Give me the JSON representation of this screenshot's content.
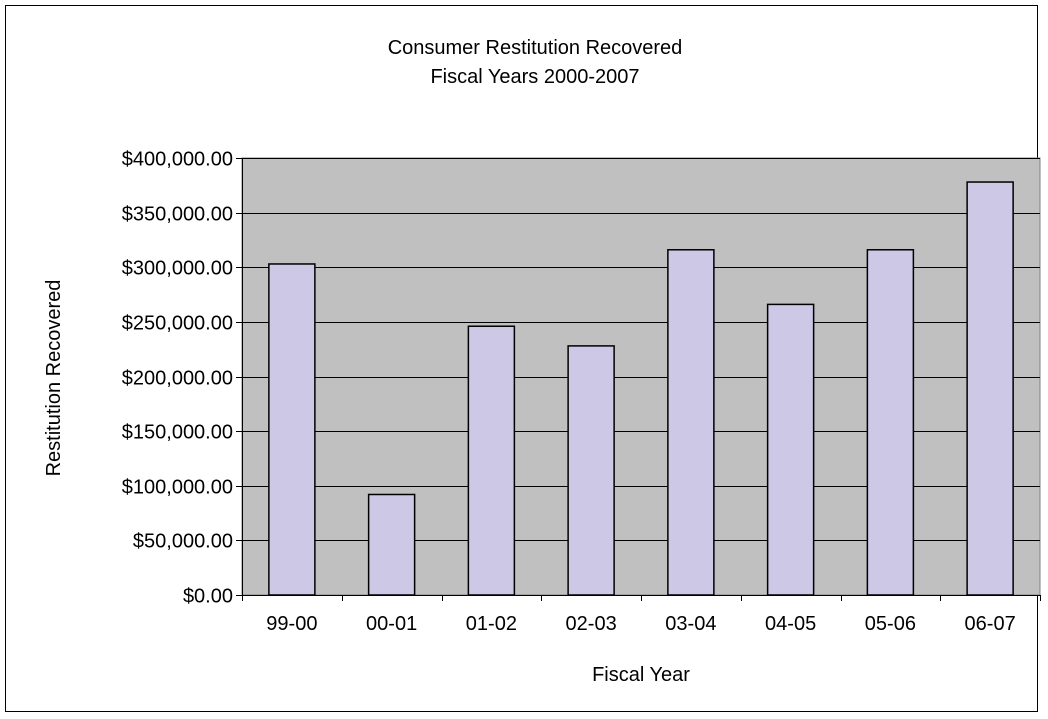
{
  "chart_data": {
    "type": "bar",
    "title": "Consumer Restitution Recovered",
    "subtitle": "Fiscal Years 2000-2007",
    "xlabel": "Fiscal Year",
    "ylabel": "Restitution Recovered",
    "categories": [
      "99-00",
      "00-01",
      "01-02",
      "02-03",
      "03-04",
      "04-05",
      "05-06",
      "06-07"
    ],
    "values": [
      303000,
      92000,
      246000,
      228000,
      316000,
      266000,
      316000,
      378000
    ],
    "ylim": [
      0,
      400000
    ],
    "yticks": [
      0,
      50000,
      100000,
      150000,
      200000,
      250000,
      300000,
      350000,
      400000
    ],
    "ytick_labels": [
      "$0.00",
      "$50,000.00",
      "$100,000.00",
      "$150,000.00",
      "$200,000.00",
      "$250,000.00",
      "$300,000.00",
      "$350,000.00",
      "$400,000.00"
    ],
    "grid": true,
    "legend": "none",
    "colors": {
      "plot_background": "#c0c0c0",
      "bar_fill": "#ccc8e6",
      "bar_stroke": "#000000",
      "gridline": "#000000",
      "text": "#000000"
    }
  }
}
